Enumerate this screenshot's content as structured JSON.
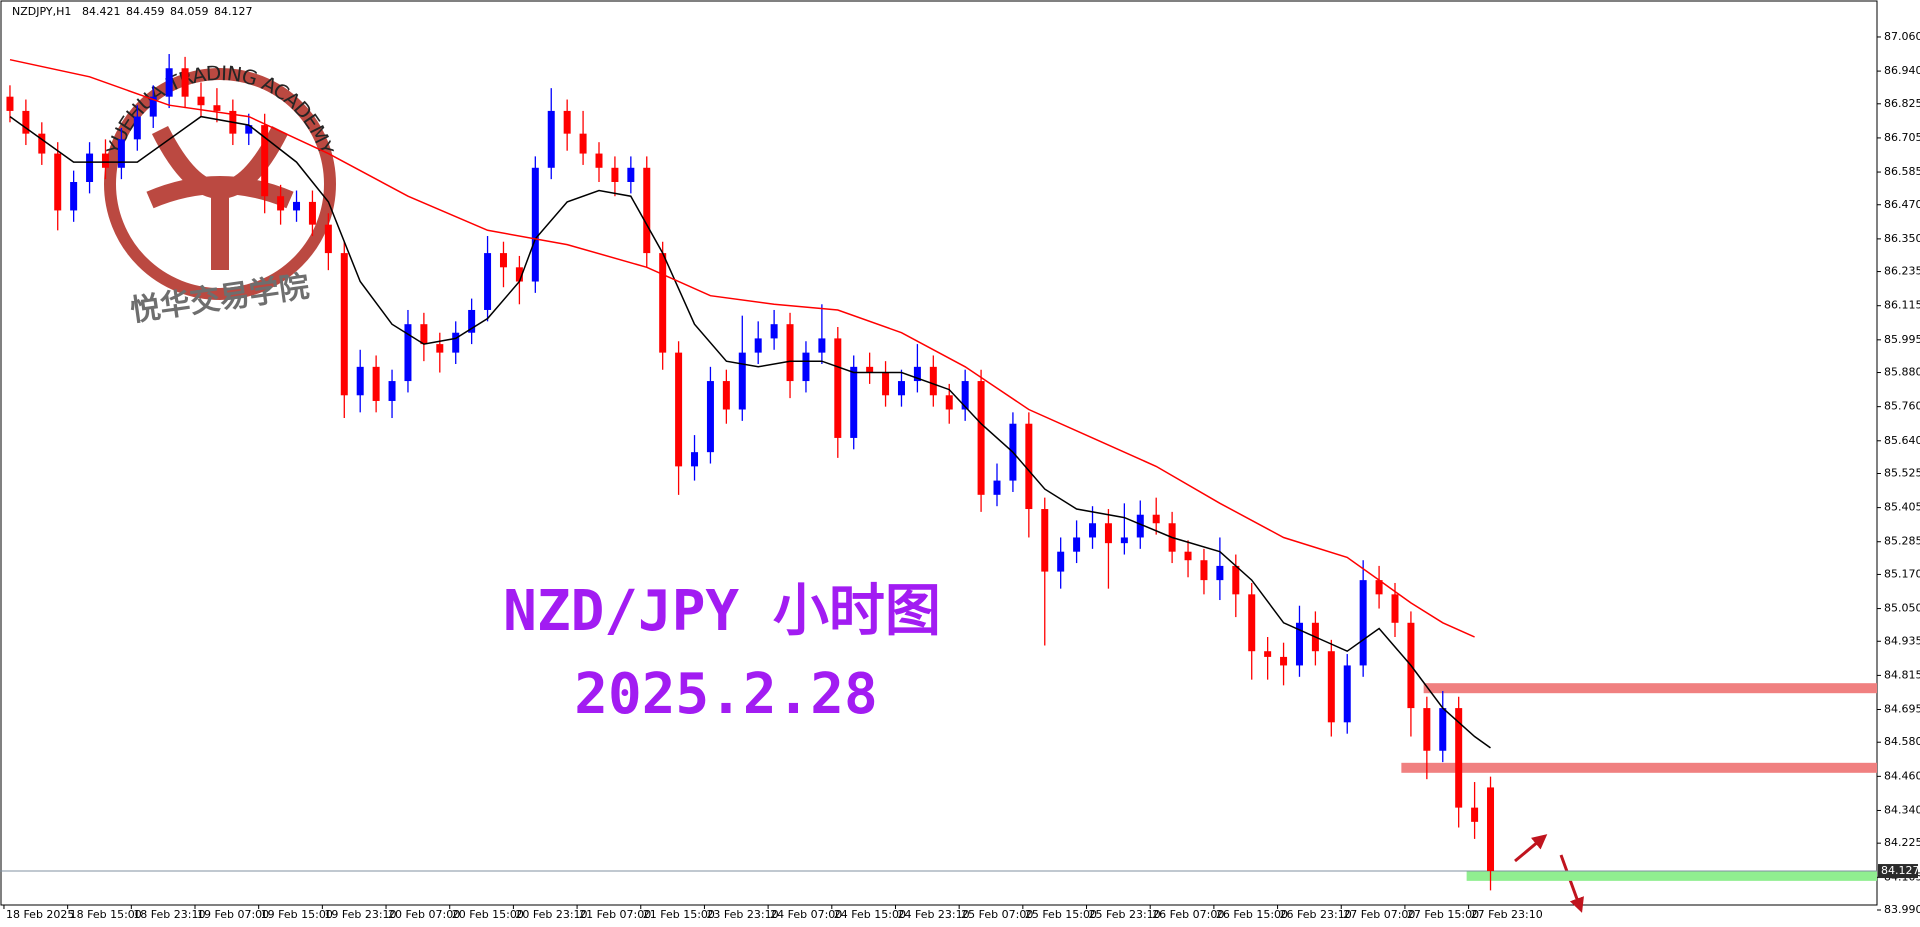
{
  "chart_data": {
    "type": "candlestick",
    "symbol": "NZDJPY,H1",
    "header_prices": [
      84.421,
      84.459,
      84.059,
      84.127
    ],
    "title": "NZD/JPY 小时图",
    "subtitle": "2025.2.28",
    "watermark": {
      "arc_text": "YUEHUA TRADING ACADEMY",
      "name": "悦华交易学院"
    },
    "bull_color": "#0000ff",
    "bear_color": "#ff0000",
    "ylim": [
      83.99,
      87.19
    ],
    "yticks": [
      {
        "value": 87.06,
        "label": "87.060"
      },
      {
        "value": 86.94,
        "label": "86.940"
      },
      86.825,
      86.705,
      86.585,
      {
        "value": 86.47,
        "label": "86.470"
      },
      {
        "value": 86.35,
        "label": "86.350"
      },
      86.235,
      86.115,
      85.995,
      {
        "value": 85.88,
        "label": "85.880"
      },
      {
        "value": 85.76,
        "label": "85.760"
      },
      {
        "value": 85.64,
        "label": "85.640"
      },
      85.525,
      85.405,
      85.285,
      {
        "value": 85.17,
        "label": "85.170"
      },
      {
        "value": 85.05,
        "label": "85.050"
      },
      84.935,
      84.815,
      84.695,
      {
        "value": 84.58,
        "label": "84.580"
      },
      {
        "value": 84.46,
        "label": "84.460"
      },
      {
        "value": 84.34,
        "label": "84.340"
      },
      84.225,
      84.105,
      {
        "value": 83.99,
        "label": "83.990"
      }
    ],
    "categories": [
      "18 Feb 2025",
      null,
      null,
      null,
      "18 Feb 15:00",
      null,
      null,
      null,
      "18 Feb 23:10",
      null,
      null,
      null,
      "19 Feb 07:00",
      null,
      null,
      null,
      "19 Feb 15:00",
      null,
      null,
      null,
      "19 Feb 23:10",
      null,
      null,
      null,
      "20 Feb 07:00",
      null,
      null,
      null,
      "20 Feb 15:00",
      null,
      null,
      null,
      "20 Feb 23:10",
      null,
      null,
      null,
      "21 Feb 07:00",
      null,
      null,
      null,
      "21 Feb 15:00",
      null,
      null,
      null,
      "23 Feb 23:10",
      null,
      null,
      null,
      "24 Feb 07:00",
      null,
      null,
      null,
      "24 Feb 15:00",
      null,
      null,
      null,
      "24 Feb 23:10",
      null,
      null,
      null,
      "25 Feb 07:00",
      null,
      null,
      null,
      "25 Feb 15:00",
      null,
      null,
      null,
      "25 Feb 23:10",
      null,
      null,
      null,
      "26 Feb 07:00",
      null,
      null,
      null,
      "26 Feb 15:00",
      null,
      null,
      null,
      "26 Feb 23:10",
      null,
      null,
      null,
      "27 Feb 07:00",
      null,
      null,
      null,
      "27 Feb 15:00",
      null,
      null,
      null,
      "27 Feb 23:10",
      null
    ],
    "ohlc": [
      [
        86.85,
        86.89,
        86.76,
        86.8
      ],
      [
        86.8,
        86.84,
        86.68,
        86.72
      ],
      [
        86.72,
        86.76,
        86.61,
        86.65
      ],
      [
        86.65,
        86.69,
        86.38,
        86.45
      ],
      [
        86.45,
        86.59,
        86.41,
        86.55
      ],
      [
        86.55,
        86.69,
        86.51,
        86.65
      ],
      [
        86.65,
        86.7,
        86.56,
        86.6
      ],
      [
        86.6,
        86.74,
        86.56,
        86.7
      ],
      [
        86.7,
        86.82,
        86.66,
        86.78
      ],
      [
        86.78,
        86.89,
        86.74,
        86.85
      ],
      [
        86.85,
        87.0,
        86.81,
        86.95
      ],
      [
        86.95,
        86.99,
        86.81,
        86.85
      ],
      [
        86.85,
        86.9,
        86.78,
        86.82
      ],
      [
        86.82,
        86.88,
        86.76,
        86.8
      ],
      [
        86.8,
        86.84,
        86.68,
        86.72
      ],
      [
        86.72,
        86.79,
        86.68,
        86.75
      ],
      [
        86.75,
        86.79,
        86.44,
        86.5
      ],
      [
        86.5,
        86.54,
        86.4,
        86.45
      ],
      [
        86.45,
        86.52,
        86.41,
        86.48
      ],
      [
        86.48,
        86.52,
        86.36,
        86.4
      ],
      [
        86.4,
        86.44,
        86.24,
        86.3
      ],
      [
        86.3,
        86.34,
        85.72,
        85.8
      ],
      [
        85.8,
        85.96,
        85.74,
        85.9
      ],
      [
        85.9,
        85.94,
        85.74,
        85.78
      ],
      [
        85.78,
        85.89,
        85.72,
        85.85
      ],
      [
        85.85,
        86.1,
        85.81,
        86.05
      ],
      [
        86.05,
        86.09,
        85.92,
        85.98
      ],
      [
        85.98,
        86.02,
        85.88,
        85.95
      ],
      [
        85.95,
        86.06,
        85.91,
        86.02
      ],
      [
        86.02,
        86.14,
        85.98,
        86.1
      ],
      [
        86.1,
        86.36,
        86.06,
        86.3
      ],
      [
        86.3,
        86.34,
        86.18,
        86.25
      ],
      [
        86.25,
        86.29,
        86.12,
        86.2
      ],
      [
        86.2,
        86.64,
        86.16,
        86.6
      ],
      [
        86.6,
        86.88,
        86.56,
        86.8
      ],
      [
        86.8,
        86.84,
        86.66,
        86.72
      ],
      [
        86.72,
        86.8,
        86.61,
        86.65
      ],
      [
        86.65,
        86.69,
        86.55,
        86.6
      ],
      [
        86.6,
        86.64,
        86.5,
        86.55
      ],
      [
        86.55,
        86.64,
        86.51,
        86.6
      ],
      [
        86.6,
        86.64,
        86.25,
        86.3
      ],
      [
        86.3,
        86.34,
        85.89,
        85.95
      ],
      [
        85.95,
        85.99,
        85.45,
        85.55
      ],
      [
        85.55,
        85.66,
        85.5,
        85.6
      ],
      [
        85.6,
        85.9,
        85.56,
        85.85
      ],
      [
        85.85,
        85.89,
        85.7,
        85.75
      ],
      [
        85.75,
        86.08,
        85.71,
        85.95
      ],
      [
        85.95,
        86.06,
        85.91,
        86.0
      ],
      [
        86.0,
        86.1,
        85.96,
        86.05
      ],
      [
        86.05,
        86.09,
        85.79,
        85.85
      ],
      [
        85.85,
        85.99,
        85.81,
        85.95
      ],
      [
        85.95,
        86.12,
        85.91,
        86.0
      ],
      [
        86.0,
        86.04,
        85.58,
        85.65
      ],
      [
        85.65,
        85.94,
        85.61,
        85.9
      ],
      [
        85.9,
        85.95,
        85.84,
        85.88
      ],
      [
        85.88,
        85.92,
        85.76,
        85.8
      ],
      [
        85.8,
        85.89,
        85.76,
        85.85
      ],
      [
        85.85,
        85.98,
        85.81,
        85.9
      ],
      [
        85.9,
        85.94,
        85.76,
        85.8
      ],
      [
        85.8,
        85.84,
        85.7,
        85.75
      ],
      [
        85.75,
        85.89,
        85.71,
        85.85
      ],
      [
        85.85,
        85.89,
        85.39,
        85.45
      ],
      [
        85.45,
        85.56,
        85.41,
        85.5
      ],
      [
        85.5,
        85.74,
        85.46,
        85.7
      ],
      [
        85.7,
        85.74,
        85.3,
        85.4
      ],
      [
        85.4,
        85.44,
        84.92,
        85.18
      ],
      [
        85.18,
        85.3,
        85.12,
        85.25
      ],
      [
        85.25,
        85.36,
        85.21,
        85.3
      ],
      [
        85.3,
        85.41,
        85.26,
        85.35
      ],
      [
        85.35,
        85.4,
        85.12,
        85.28
      ],
      [
        85.28,
        85.42,
        85.24,
        85.3
      ],
      [
        85.3,
        85.43,
        85.26,
        85.38
      ],
      [
        85.38,
        85.44,
        85.31,
        85.35
      ],
      [
        85.35,
        85.39,
        85.21,
        85.25
      ],
      [
        85.25,
        85.29,
        85.16,
        85.22
      ],
      [
        85.22,
        85.26,
        85.1,
        85.15
      ],
      [
        85.15,
        85.3,
        85.08,
        85.2
      ],
      [
        85.2,
        85.24,
        85.02,
        85.1
      ],
      [
        85.1,
        85.14,
        84.8,
        84.9
      ],
      [
        84.9,
        84.95,
        84.8,
        84.88
      ],
      [
        84.88,
        84.93,
        84.78,
        84.85
      ],
      [
        84.85,
        85.06,
        84.81,
        85.0
      ],
      [
        85.0,
        85.04,
        84.85,
        84.9
      ],
      [
        84.9,
        84.94,
        84.6,
        84.65
      ],
      [
        84.65,
        84.89,
        84.61,
        84.85
      ],
      [
        84.85,
        85.22,
        84.81,
        85.15
      ],
      [
        85.15,
        85.2,
        85.05,
        85.1
      ],
      [
        85.1,
        85.14,
        84.95,
        85.0
      ],
      [
        85.0,
        85.04,
        84.6,
        84.7
      ],
      [
        84.7,
        84.74,
        84.45,
        84.55
      ],
      [
        84.55,
        84.76,
        84.51,
        84.7
      ],
      [
        84.7,
        84.74,
        84.28,
        84.35
      ],
      [
        84.35,
        84.44,
        84.24,
        84.3
      ],
      [
        84.421,
        84.459,
        84.059,
        84.127
      ]
    ],
    "series": [
      {
        "color": "#000000",
        "x": [
          0,
          4,
          8,
          12,
          15,
          18,
          20,
          22,
          24,
          26,
          28,
          30,
          32,
          33,
          35,
          37,
          39,
          41,
          43,
          45,
          47,
          49,
          51,
          53,
          56,
          59,
          61,
          63,
          65,
          67,
          70,
          73,
          76,
          78,
          80,
          82,
          84,
          86,
          88,
          90,
          92,
          93
        ],
        "values": [
          86.78,
          86.62,
          86.62,
          86.78,
          86.75,
          86.62,
          86.48,
          86.2,
          86.05,
          85.98,
          86.0,
          86.07,
          86.2,
          86.35,
          86.48,
          86.52,
          86.5,
          86.3,
          86.05,
          85.92,
          85.9,
          85.92,
          85.92,
          85.88,
          85.88,
          85.82,
          85.7,
          85.6,
          85.47,
          85.4,
          85.37,
          85.3,
          85.25,
          85.15,
          85.0,
          84.95,
          84.9,
          84.98,
          84.85,
          84.7,
          84.6,
          84.56
        ]
      },
      {
        "color": "#ff0000",
        "x": [
          0,
          5,
          10,
          15,
          20,
          25,
          30,
          35,
          40,
          44,
          48,
          52,
          56,
          60,
          64,
          68,
          72,
          76,
          80,
          84,
          86,
          88,
          90,
          92
        ],
        "values": [
          86.98,
          86.92,
          86.82,
          86.78,
          86.65,
          86.5,
          86.38,
          86.33,
          86.25,
          86.15,
          86.12,
          86.1,
          86.02,
          85.9,
          85.75,
          85.65,
          85.55,
          85.42,
          85.3,
          85.23,
          85.15,
          85.07,
          85.0,
          84.95
        ]
      }
    ],
    "zones": [
      {
        "level": 84.77,
        "start": 88.8,
        "color": "#f08080"
      },
      {
        "level": 84.49,
        "start": 87.4,
        "color": "#f08080"
      },
      {
        "level": 84.11,
        "start": 91.5,
        "color": "#90ee90"
      }
    ]
  }
}
